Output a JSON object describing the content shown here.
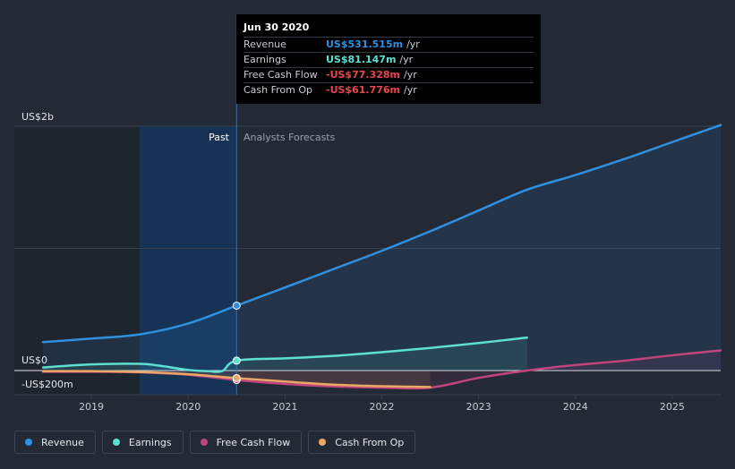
{
  "chart_data": {
    "type": "line",
    "y_unit_label_top": "US$2b",
    "y_unit_label_zero": "US$0",
    "y_unit_label_bottom": "-US$200m",
    "ylim": [
      -200,
      2000
    ],
    "xlim": [
      2018.5,
      2025.5
    ],
    "x_ticks": [
      "2019",
      "2020",
      "2021",
      "2022",
      "2023",
      "2024",
      "2025"
    ],
    "grid": true,
    "past_label": "Past",
    "forecast_label": "Analysts Forecasts",
    "past_end": 2020.5,
    "highlight_start": 2019.5,
    "series": [
      {
        "name": "Revenue",
        "color": "#2f8fe0",
        "points": [
          [
            2018.5,
            233
          ],
          [
            2019.0,
            262
          ],
          [
            2019.5,
            296
          ],
          [
            2020.0,
            385
          ],
          [
            2020.5,
            531.5
          ],
          [
            2021.0,
            680
          ],
          [
            2021.5,
            830
          ],
          [
            2022.0,
            980
          ],
          [
            2022.5,
            1140
          ],
          [
            2023.0,
            1310
          ],
          [
            2023.5,
            1480
          ],
          [
            2024.0,
            1600
          ],
          [
            2024.5,
            1730
          ],
          [
            2025.0,
            1870
          ],
          [
            2025.5,
            2010
          ]
        ]
      },
      {
        "name": "Earnings",
        "color": "#5de0d0",
        "points": [
          [
            2018.5,
            25
          ],
          [
            2019.0,
            50
          ],
          [
            2019.5,
            55
          ],
          [
            2019.7,
            40
          ],
          [
            2020.0,
            5
          ],
          [
            2020.2,
            -5
          ],
          [
            2020.35,
            -5
          ],
          [
            2020.5,
            81.1
          ],
          [
            2021.0,
            100
          ],
          [
            2021.5,
            120
          ],
          [
            2022.0,
            150
          ],
          [
            2022.5,
            185
          ],
          [
            2023.0,
            225
          ],
          [
            2023.5,
            270
          ]
        ]
      },
      {
        "name": "Free Cash Flow",
        "color": "#c2447c",
        "points": [
          [
            2018.5,
            -10
          ],
          [
            2019.0,
            -10
          ],
          [
            2019.5,
            -15
          ],
          [
            2020.0,
            -35
          ],
          [
            2020.5,
            -77.3
          ],
          [
            2021.0,
            -110
          ],
          [
            2021.5,
            -130
          ],
          [
            2022.0,
            -140
          ],
          [
            2022.5,
            -140
          ],
          [
            2023.0,
            -60
          ],
          [
            2023.5,
            0
          ],
          [
            2024.0,
            45
          ],
          [
            2024.5,
            80
          ],
          [
            2025.0,
            125
          ],
          [
            2025.5,
            165
          ]
        ]
      },
      {
        "name": "Cash From Op",
        "color": "#e9a865",
        "points": [
          [
            2018.5,
            -5
          ],
          [
            2019.0,
            -5
          ],
          [
            2019.5,
            -12
          ],
          [
            2020.0,
            -30
          ],
          [
            2020.5,
            -61.8
          ],
          [
            2021.0,
            -90
          ],
          [
            2021.5,
            -115
          ],
          [
            2022.0,
            -128
          ],
          [
            2022.5,
            -135
          ]
        ]
      }
    ],
    "tooltip": {
      "date": "Jun 30 2020",
      "rows": [
        {
          "label": "Revenue",
          "value": "US$531.515m",
          "unit": "/yr",
          "color": "#2f8fe0"
        },
        {
          "label": "Earnings",
          "value": "US$81.147m",
          "unit": "/yr",
          "color": "#5de0d0"
        },
        {
          "label": "Free Cash Flow",
          "value": "-US$77.328m",
          "unit": "/yr",
          "color": "#e8454e"
        },
        {
          "label": "Cash From Op",
          "value": "-US$61.776m",
          "unit": "/yr",
          "color": "#e8454e"
        }
      ]
    }
  },
  "legend": [
    {
      "label": "Revenue",
      "color": "#2f8fe0"
    },
    {
      "label": "Earnings",
      "color": "#5de0d0"
    },
    {
      "label": "Free Cash Flow",
      "color": "#c2447c"
    },
    {
      "label": "Cash From Op",
      "color": "#e9a865"
    }
  ]
}
